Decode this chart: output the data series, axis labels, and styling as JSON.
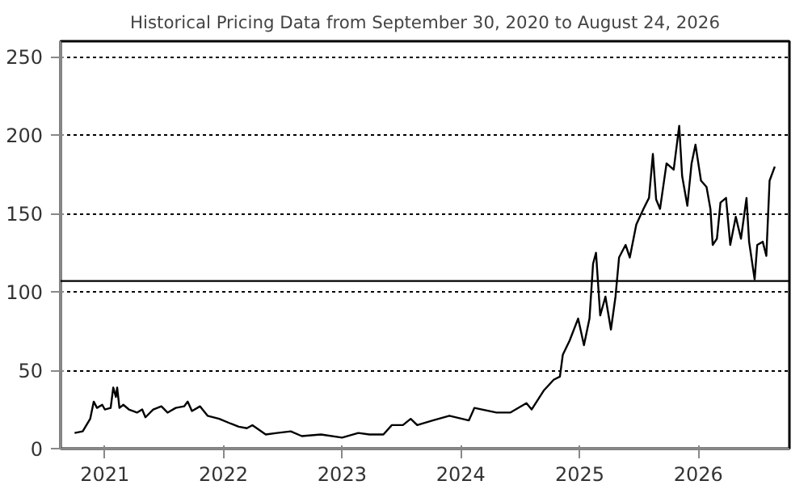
{
  "chart_data": {
    "type": "line",
    "title": "Historical Pricing Data from September 30, 2020 to August 24, 2026",
    "x": [
      "2020-09-30",
      "2020-10-25",
      "2020-11-17",
      "2020-11-28",
      "2020-12-08",
      "2020-12-24",
      "2021-01-01",
      "2021-01-19",
      "2021-01-27",
      "2021-02-04",
      "2021-02-08",
      "2021-02-15",
      "2021-02-27",
      "2021-03-16",
      "2021-04-10",
      "2021-04-26",
      "2021-05-06",
      "2021-05-30",
      "2021-06-24",
      "2021-07-13",
      "2021-08-07",
      "2021-09-02",
      "2021-09-13",
      "2021-09-26",
      "2021-10-21",
      "2021-11-13",
      "2021-12-19",
      "2022-01-23",
      "2022-02-17",
      "2022-03-14",
      "2022-03-31",
      "2022-05-11",
      "2022-06-15",
      "2022-07-27",
      "2022-08-30",
      "2022-10-28",
      "2023-01-01",
      "2023-02-20",
      "2023-03-26",
      "2023-05-08",
      "2023-06-03",
      "2023-07-07",
      "2023-07-31",
      "2023-08-20",
      "2023-10-07",
      "2023-11-27",
      "2024-01-26",
      "2024-02-12",
      "2024-04-20",
      "2024-06-01",
      "2024-07-21",
      "2024-08-06",
      "2024-09-12",
      "2024-10-13",
      "2024-11-01",
      "2024-11-10",
      "2024-12-01",
      "2024-12-27",
      "2025-01-14",
      "2025-01-31",
      "2025-02-11",
      "2025-02-20",
      "2025-03-05",
      "2025-03-21",
      "2025-04-07",
      "2025-04-21",
      "2025-05-02",
      "2025-05-22",
      "2025-06-04",
      "2025-06-24",
      "2025-07-16",
      "2025-08-02",
      "2025-08-14",
      "2025-08-24",
      "2025-09-05",
      "2025-09-25",
      "2025-10-17",
      "2025-11-03",
      "2025-11-12",
      "2025-11-28",
      "2025-12-11",
      "2025-12-23",
      "2026-01-09",
      "2026-01-26",
      "2026-02-07",
      "2026-02-14",
      "2026-02-27",
      "2026-03-10",
      "2026-03-27",
      "2026-04-09",
      "2026-04-26",
      "2026-05-12",
      "2026-05-29",
      "2026-06-06",
      "2026-06-23",
      "2026-07-01",
      "2026-07-18",
      "2026-07-29",
      "2026-08-08",
      "2026-08-24"
    ],
    "series": [
      {
        "color": "#000000",
        "values": [
          10,
          11,
          19,
          30,
          26,
          28,
          25,
          26,
          39,
          33,
          39,
          26,
          28,
          25,
          23,
          25,
          20,
          25,
          27,
          23,
          26,
          27,
          30,
          24,
          27,
          21,
          19,
          16,
          14,
          13,
          15,
          9,
          10,
          11,
          8,
          9,
          7,
          10,
          9,
          9,
          15,
          15,
          19,
          15,
          18,
          21,
          18,
          26,
          23,
          23,
          29,
          25,
          37,
          44,
          46,
          60,
          69,
          83,
          66,
          83,
          118,
          125,
          85,
          97,
          76,
          97,
          122,
          130,
          122,
          143,
          153,
          160,
          188,
          159,
          153,
          182,
          178,
          206,
          174,
          155,
          182,
          194,
          171,
          167,
          153,
          130,
          134,
          157,
          160,
          130,
          148,
          134,
          160,
          132,
          108,
          130,
          132,
          123,
          171,
          180
        ]
      }
    ],
    "xlim": [
      "2020-08-18",
      "2026-10-08"
    ],
    "xticks": [
      {
        "value": "2021-01-01",
        "label": "2021"
      },
      {
        "value": "2022-01-01",
        "label": "2022"
      },
      {
        "value": "2023-01-01",
        "label": "2023"
      },
      {
        "value": "2024-01-01",
        "label": "2024"
      },
      {
        "value": "2025-01-01",
        "label": "2025"
      },
      {
        "value": "2026-01-01",
        "label": "2026"
      }
    ],
    "ylim": [
      0,
      260
    ],
    "yticks": [
      0,
      50,
      100,
      150,
      200,
      250
    ],
    "grid": "y",
    "marker": "none",
    "line_style": "solid",
    "ref_lines": [
      {
        "axis": "y",
        "value": 107,
        "color": "#000000"
      }
    ]
  }
}
